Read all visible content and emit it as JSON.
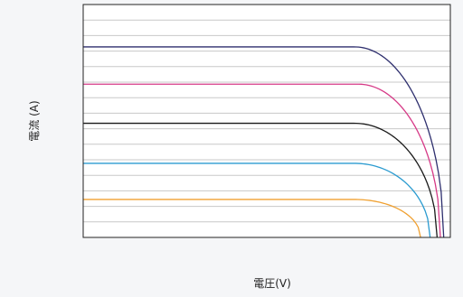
{
  "chart_data": {
    "type": "line",
    "title": "",
    "xlabel": "電圧(V)",
    "ylabel": "電流 (A)",
    "xlim": [
      0,
      100
    ],
    "ylim": [
      0,
      100
    ],
    "grid": "horizontal",
    "legend": "none",
    "series": [
      {
        "color": "#2e2f6e",
        "isc": 81.8,
        "knee": 74,
        "voc": 98.2
      },
      {
        "color": "#d63a87",
        "isc": 65.8,
        "knee": 75,
        "voc": 97.3
      },
      {
        "color": "#1a1a1a",
        "isc": 49.0,
        "knee": 74,
        "voc": 96.4
      },
      {
        "color": "#2b9bd0",
        "isc": 31.8,
        "knee": 74,
        "voc": 94.5
      },
      {
        "color": "#f0a030",
        "isc": 16.3,
        "knee": 74,
        "voc": 91.9
      }
    ]
  }
}
